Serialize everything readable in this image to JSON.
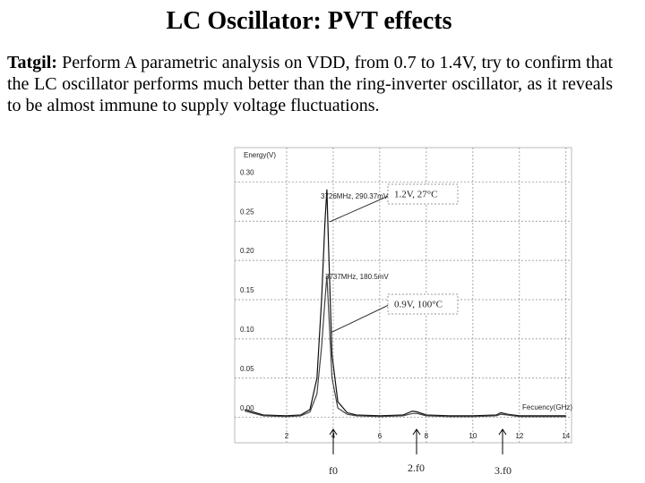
{
  "title": "LC Oscillator: PVT effects",
  "body": {
    "label": "Tatgil:",
    "text": "Perform A parametric analysis on VDD, from 0.7 to 1.4V, try to  confirm that the LC oscillator performs much better than the ring-inverter oscillator, as it reveals to be almost immune to supply voltage fluctuations."
  },
  "chart_data": {
    "type": "line",
    "y_label": "Energy(V)",
    "x_label": "Fecuency(GHz)",
    "x": [
      0.2,
      1,
      2,
      2.6,
      3.0,
      3.3,
      3.5,
      3.65,
      3.73,
      3.8,
      3.95,
      4.2,
      4.6,
      5,
      6,
      7,
      7.4,
      7.6,
      8,
      9,
      10,
      11,
      11.2,
      11.5,
      12,
      13,
      14
    ],
    "series": [
      {
        "name": "1.2V, 27°C",
        "color": "#111111",
        "values": [
          0.01,
          0.003,
          0.002,
          0.003,
          0.01,
          0.05,
          0.15,
          0.25,
          0.2903,
          0.22,
          0.08,
          0.02,
          0.006,
          0.003,
          0.002,
          0.003,
          0.008,
          0.007,
          0.003,
          0.002,
          0.002,
          0.003,
          0.006,
          0.004,
          0.002,
          0.002,
          0.002
        ]
      },
      {
        "name": "0.9V, 100°C",
        "color": "#444444",
        "values": [
          0.008,
          0.002,
          0.001,
          0.002,
          0.007,
          0.03,
          0.09,
          0.15,
          0.1805,
          0.14,
          0.05,
          0.012,
          0.004,
          0.002,
          0.001,
          0.002,
          0.005,
          0.005,
          0.002,
          0.001,
          0.001,
          0.002,
          0.004,
          0.003,
          0.001,
          0.001,
          0.001
        ]
      }
    ],
    "annotations": [
      "3726MHz, 290.37mV",
      "3737MHz, 180.5mV"
    ],
    "xlim": [
      0,
      14.2
    ],
    "ylim": [
      -0.03,
      0.33
    ],
    "xticks": [
      2,
      4,
      6,
      8,
      10,
      12,
      14
    ],
    "yticks": [
      {
        "value": 0,
        "label": "0.00"
      },
      0.05,
      {
        "value": 0.1,
        "label": "0.10"
      },
      0.15,
      {
        "value": 0.2,
        "label": "0.20"
      },
      0.25,
      {
        "value": 0.3,
        "label": "0.30"
      }
    ],
    "grid": true
  },
  "markers": [
    "f0",
    "2.f0",
    "3.f0"
  ]
}
